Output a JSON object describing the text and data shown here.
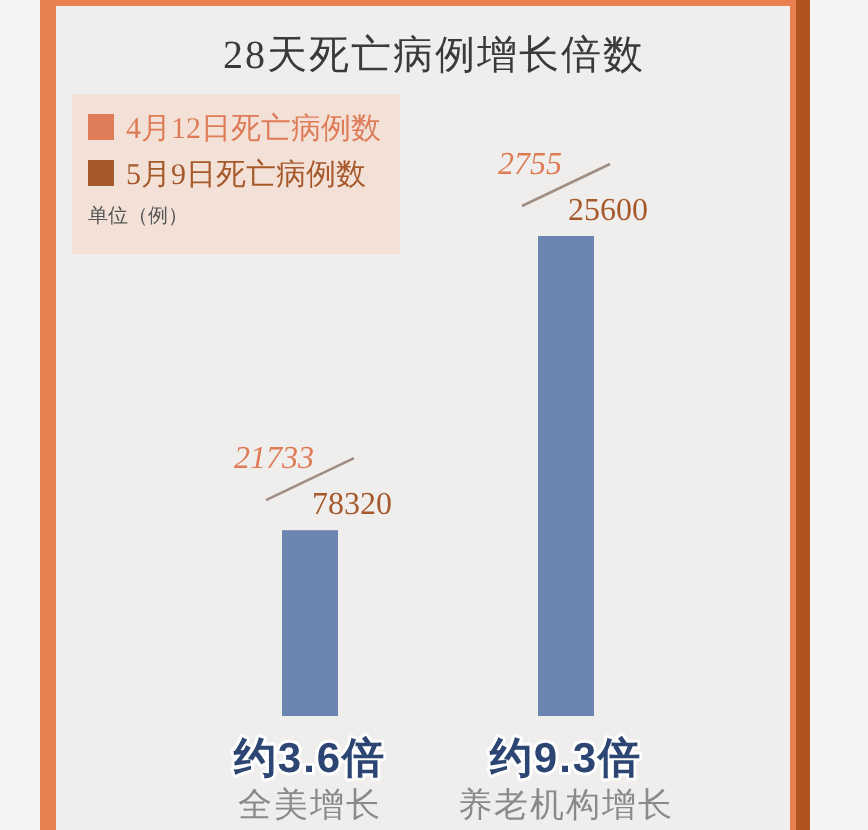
{
  "chart_data": {
    "type": "bar",
    "title": "28天死亡病例增长倍数",
    "categories": [
      "全美增长",
      "养老机构增长"
    ],
    "ylim": [
      0,
      9.3
    ],
    "tick_labels": "x",
    "series": [
      {
        "color": "#6b84b0",
        "values": [
          3.6,
          9.3
        ],
        "value_labels": [
          "约3.6倍",
          "约9.3倍"
        ]
      },
      {
        "name": "4月12日死亡病例数",
        "type": "other",
        "color": "#df7c58",
        "values": [
          null,
          null
        ],
        "value_labels": [
          "21733",
          "2755"
        ]
      },
      {
        "name": "5月9日死亡病例数",
        "type": "other",
        "color": "#a65a2c",
        "values": [
          null,
          null
        ],
        "value_labels": [
          "78320",
          "25600"
        ]
      }
    ],
    "legend": "top left",
    "annotations": [
      "单位（例）"
    ]
  }
}
